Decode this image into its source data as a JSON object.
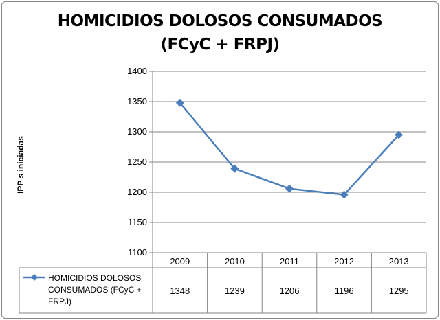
{
  "title_line1": "HOMICIDIOS DOLOSOS CONSUMADOS",
  "title_line2": "(FCyC + FRPJ)",
  "chart_data": {
    "type": "line",
    "title": "HOMICIDIOS DOLOSOS CONSUMADOS (FCyC + FRPJ)",
    "xlabel": "",
    "ylabel": "IPP s iniciadas",
    "categories": [
      "2009",
      "2010",
      "2011",
      "2012",
      "2013"
    ],
    "yticks": [
      1100,
      1150,
      1200,
      1250,
      1300,
      1350,
      1400
    ],
    "ylim": [
      1100,
      1400
    ],
    "grid": true,
    "legend": "data-table-left",
    "series": [
      {
        "name": "HOMICIDIOS DOLOSOS CONSUMADOS (FCyC + FRPJ)",
        "legend_lines": [
          "HOMICIDIOS DOLOSOS",
          "CONSUMADOS (FCyC +",
          "FRPJ)"
        ],
        "values": [
          1348,
          1239,
          1206,
          1196,
          1295
        ],
        "color": "#4a7ebb",
        "marker": "diamond"
      }
    ]
  }
}
